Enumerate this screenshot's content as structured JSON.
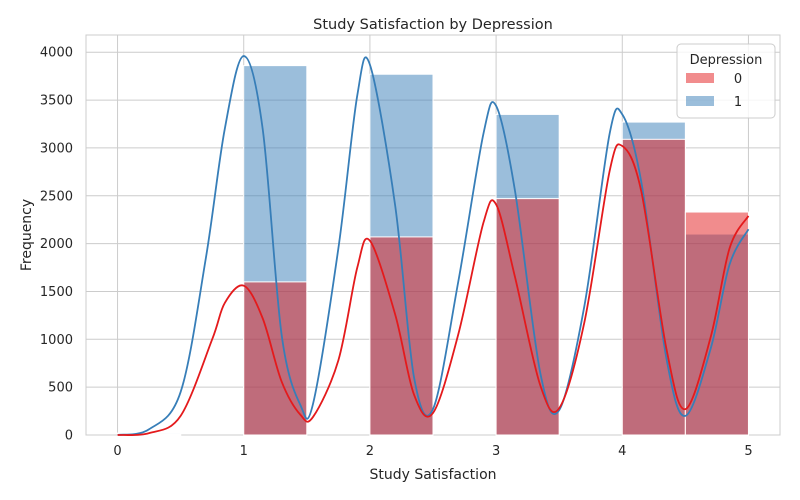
{
  "chart_data": {
    "type": "bar",
    "title": "Study Satisfaction by Depression",
    "xlabel": "Study Satisfaction",
    "ylabel": "Frequency",
    "xlim": [
      -0.25,
      5.25
    ],
    "ylim": [
      0,
      4180
    ],
    "xticks": [
      0,
      1,
      2,
      3,
      4,
      5
    ],
    "yticks": [
      0,
      500,
      1000,
      1500,
      2000,
      2500,
      3000,
      3500,
      4000
    ],
    "bin_edges": [
      0,
      0.5,
      1,
      1.5,
      2,
      2.5,
      3,
      3.5,
      4,
      4.5,
      5
    ],
    "grid": true,
    "legend": {
      "title": "Depression",
      "placement": "top-right"
    },
    "series": [
      {
        "name": "0",
        "color": "#e41a1c",
        "values": [
          10,
          0,
          1600,
          0,
          2070,
          0,
          2470,
          0,
          3090,
          2330
        ],
        "kde": {
          "x": [
            0,
            0.25,
            0.5,
            0.75,
            0.85,
            1,
            1.15,
            1.3,
            1.45,
            1.55,
            1.75,
            1.9,
            2,
            2.2,
            2.35,
            2.5,
            2.7,
            2.9,
            3,
            3.15,
            3.35,
            3.5,
            3.7,
            3.9,
            4,
            4.15,
            4.35,
            4.5,
            4.7,
            4.85,
            5
          ],
          "y": [
            0,
            20,
            200,
            1000,
            1380,
            1560,
            1220,
            560,
            210,
            190,
            780,
            1750,
            2030,
            1260,
            420,
            230,
            1050,
            2220,
            2410,
            1650,
            520,
            280,
            1180,
            2760,
            3020,
            2550,
            900,
            270,
            1020,
            1950,
            2290
          ]
        }
      },
      {
        "name": "1",
        "color": "#377eb8",
        "values": [
          20,
          0,
          3860,
          0,
          3770,
          0,
          3350,
          0,
          3270,
          2100
        ],
        "kde": {
          "x": [
            0,
            0.25,
            0.5,
            0.7,
            0.85,
            1,
            1.15,
            1.3,
            1.45,
            1.55,
            1.75,
            1.9,
            2,
            2.2,
            2.35,
            2.5,
            2.7,
            2.9,
            3,
            3.15,
            3.35,
            3.5,
            3.7,
            3.9,
            4,
            4.15,
            4.35,
            4.5,
            4.7,
            4.85,
            5
          ],
          "y": [
            0,
            60,
            450,
            1850,
            3200,
            3960,
            3200,
            1050,
            310,
            330,
            1950,
            3550,
            3870,
            2400,
            600,
            270,
            1600,
            3150,
            3440,
            2550,
            650,
            260,
            1350,
            3150,
            3350,
            2650,
            800,
            200,
            900,
            1780,
            2150
          ]
        }
      }
    ]
  }
}
